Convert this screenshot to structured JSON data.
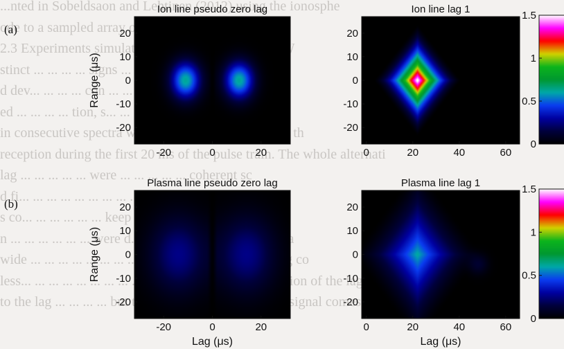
{
  "background_text": [
    "...nted in Sobeldsaon and Lehtinen (2012) using the ionosphe",
    "ode to a sampled array of arcs.",
    "  2.3 Experiments simulating ... ... ... ... generation. IW",
    "stinct ... ... ... ... signs ... was measured with a speed",
    "d dev... ... ... ... con ... ... ... ... to the sidebands",
    "ed ... ... ... ... tion, s... ... ... ... ... (11) μs the rang",
    "in consecutive spectra were 355 km. Figure 1 shows th",
    "reception during the first 20 ms of the pulse train. The whole alternati",
    "lag ... ... ... ... ... were ... ... ... ... ... coherent sc",
    "d fi... ... ... ... ... ... ... ... ... ... ... ... significantly",
    "s co... ... ... ... ... ... keep ... ... ... ... ... ... the short pul",
    "n ... ... ... ... ... ... were d... ... ... ... ... ... pseudo zero la",
    "wide ... ... ... ... ... ... ... ... es of the ... ... ... alternating co",
    "less... ... ... ... ... ... ... ... ... range-lag ambiguity function of the lag estim",
    "to the lag ... ... ... ... but the main contribution to the signal comes from"
  ],
  "panel_labels": [
    "(a)",
    "(b)"
  ],
  "colorbar": {
    "ticks": [
      "1.5",
      "1",
      "0.5",
      "0"
    ]
  },
  "colors": {
    "colormap": [
      "#000000",
      "#00003c",
      "#0000a0",
      "#0a3cf0",
      "#00a8a8",
      "#009830",
      "#0cb41c",
      "#d2d200",
      "#ff0000",
      "#ff00ff",
      "#ffffff"
    ]
  },
  "chart_data": [
    {
      "type": "heatmap",
      "title": "Ion line pseudo zero lag",
      "xlabel": "",
      "ylabel": "Range (μs)",
      "xlim": [
        -32,
        32
      ],
      "ylim": [
        -27,
        27
      ],
      "xticks": [
        "-20",
        "0",
        "20"
      ],
      "xtick_values": [
        -20,
        0,
        20
      ],
      "yticks": [
        "20",
        "10",
        "0",
        "-10",
        "-20"
      ],
      "ytick_values": [
        20,
        10,
        0,
        -10,
        -20
      ],
      "clim": [
        0,
        1.5
      ],
      "blobs": [
        {
          "shape": "gauss",
          "x": -11,
          "y": 0,
          "sx": 4.2,
          "sy": 5.5,
          "peak": 0.62
        },
        {
          "shape": "gauss",
          "x": 11,
          "y": 0,
          "sx": 4.2,
          "sy": 5.5,
          "peak": 0.62
        }
      ],
      "zero_gap": 1.5
    },
    {
      "type": "heatmap",
      "title": "Ion line lag 1",
      "xlabel": "",
      "ylabel": "",
      "xlim": [
        -2,
        66
      ],
      "ylim": [
        -27,
        27
      ],
      "xticks": [
        "0",
        "20",
        "40",
        "60"
      ],
      "xtick_values": [
        0,
        20,
        40,
        60
      ],
      "yticks": [
        "20",
        "10",
        "0",
        "-10",
        "-20"
      ],
      "ytick_values": [
        20,
        10,
        0,
        -10,
        -20
      ],
      "clim": [
        0,
        1.5
      ],
      "blobs": [
        {
          "shape": "diamond",
          "x": 22,
          "y": 0,
          "rx": 19,
          "ry": 24,
          "peak": 1.55
        }
      ]
    },
    {
      "type": "heatmap",
      "title": "Plasma line pseudo zero lag",
      "xlabel": "Lag (μs)",
      "ylabel": "Range (μs)",
      "xlim": [
        -32,
        32
      ],
      "ylim": [
        -27,
        27
      ],
      "xticks": [
        "-20",
        "0",
        "20"
      ],
      "xtick_values": [
        -20,
        0,
        20
      ],
      "yticks": [
        "20",
        "10",
        "0",
        "-10",
        "-20"
      ],
      "ytick_values": [
        20,
        10,
        0,
        -10,
        -20
      ],
      "clim": [
        0,
        1.5
      ],
      "blobs": [
        {
          "shape": "gauss",
          "x": -14,
          "y": 0,
          "sx": 8,
          "sy": 11,
          "peak": 0.26
        },
        {
          "shape": "gauss",
          "x": 14,
          "y": 0,
          "sx": 8,
          "sy": 11,
          "peak": 0.26
        }
      ],
      "zero_gap": 2
    },
    {
      "type": "heatmap",
      "title": "Plasma line lag 1",
      "xlabel": "Lag (μs)",
      "ylabel": "",
      "xlim": [
        -2,
        66
      ],
      "ylim": [
        -27,
        27
      ],
      "xticks": [
        "0",
        "20",
        "40",
        "60"
      ],
      "xtick_values": [
        0,
        20,
        40,
        60
      ],
      "yticks": [
        "20",
        "10",
        "0",
        "-10",
        "-20"
      ],
      "ytick_values": [
        20,
        10,
        0,
        -10,
        -20
      ],
      "clim": [
        0,
        1.5
      ],
      "blobs": [
        {
          "shape": "diamond",
          "x": 22,
          "y": 0,
          "rx": 28,
          "ry": 38,
          "peak": 0.62
        },
        {
          "shape": "gauss",
          "x": 48,
          "y": -4,
          "sx": 3,
          "sy": 3,
          "peak": 0.12
        }
      ]
    }
  ]
}
